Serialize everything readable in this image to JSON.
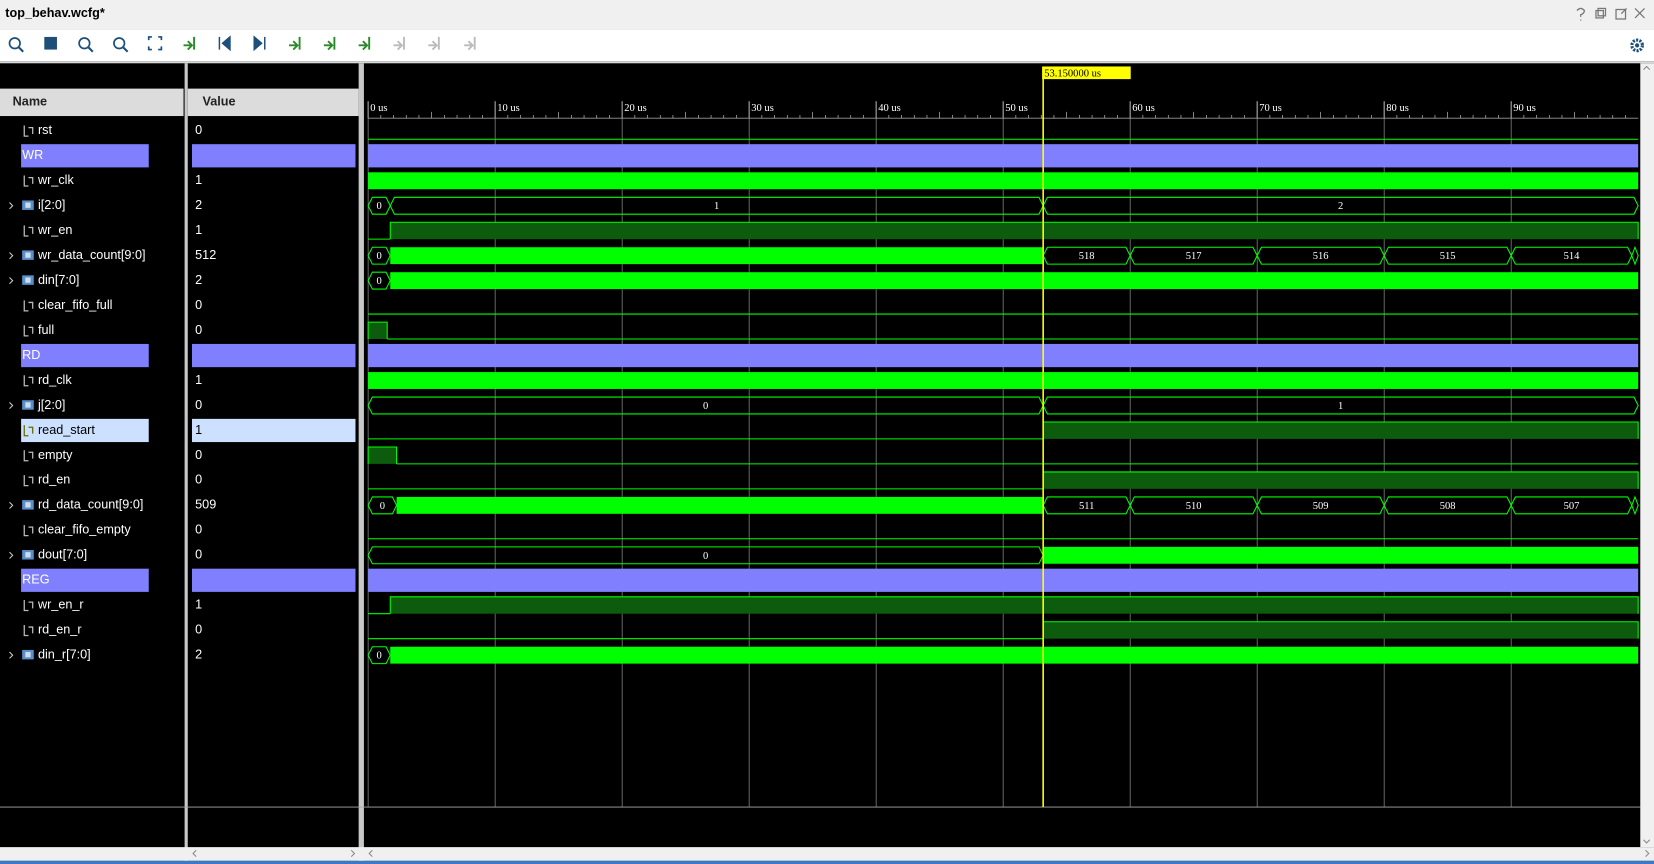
{
  "title": "top_behav.wcfg*",
  "headers": {
    "name": "Name",
    "value": "Value"
  },
  "ruler": {
    "range": [
      0,
      100
    ],
    "ticks": [
      {
        "value": 0,
        "label": "0 us"
      },
      {
        "value": 10,
        "label": "10 us"
      },
      {
        "value": 20,
        "label": "20 us"
      },
      {
        "value": 30,
        "label": "30 us"
      },
      {
        "value": 40,
        "label": "40 us"
      },
      {
        "value": 50,
        "label": "50 us"
      },
      {
        "value": 60,
        "label": "60 us"
      },
      {
        "value": 70,
        "label": "70 us"
      },
      {
        "value": 80,
        "label": "80 us"
      },
      {
        "value": 90,
        "label": "90 us"
      }
    ]
  },
  "cursor": {
    "value": 53.15,
    "label": "53.150000 us"
  },
  "signals": [
    {
      "name": "rst",
      "kind": "bit",
      "value": "0",
      "wave": [
        {
          "from": 0,
          "to": 100,
          "level": "low"
        }
      ]
    },
    {
      "name": "WR",
      "kind": "group"
    },
    {
      "name": "wr_clk",
      "kind": "bit",
      "value": "1",
      "wave": [
        {
          "from": 0,
          "to": 100,
          "level": "dense"
        }
      ]
    },
    {
      "name": "i[2:0]",
      "kind": "bus",
      "value": "2",
      "wave": [
        {
          "from": 0,
          "to": 1.74,
          "level": "bus",
          "label": "0"
        },
        {
          "from": 1.74,
          "to": 53.15,
          "level": "bus",
          "label": "1"
        },
        {
          "from": 53.15,
          "to": 100,
          "level": "bus",
          "label": "2"
        }
      ]
    },
    {
      "name": "wr_en",
      "kind": "bit",
      "value": "1",
      "wave": [
        {
          "from": 0,
          "to": 1.74,
          "level": "low"
        },
        {
          "from": 1.74,
          "to": 100,
          "level": "high"
        }
      ]
    },
    {
      "name": "wr_data_count[9:0]",
      "kind": "bus",
      "value": "512",
      "wave": [
        {
          "from": 0,
          "to": 1.74,
          "level": "bus",
          "label": "0"
        },
        {
          "from": 1.74,
          "to": 53.15,
          "level": "dense"
        },
        {
          "from": 53.15,
          "to": 60,
          "level": "bus",
          "label": "518"
        },
        {
          "from": 60,
          "to": 70,
          "level": "bus",
          "label": "517"
        },
        {
          "from": 70,
          "to": 80,
          "level": "bus",
          "label": "516"
        },
        {
          "from": 80,
          "to": 90,
          "level": "bus",
          "label": "515"
        },
        {
          "from": 90,
          "to": 99.5,
          "level": "bus",
          "label": "514"
        },
        {
          "from": 99.5,
          "to": 100,
          "level": "bus"
        }
      ]
    },
    {
      "name": "din[7:0]",
      "kind": "bus",
      "value": "2",
      "wave": [
        {
          "from": 0,
          "to": 1.74,
          "level": "bus",
          "label": "0"
        },
        {
          "from": 1.74,
          "to": 100,
          "level": "dense"
        }
      ]
    },
    {
      "name": "clear_fifo_full",
      "kind": "bit",
      "value": "0",
      "wave": [
        {
          "from": 0,
          "to": 100,
          "level": "low"
        }
      ]
    },
    {
      "name": "full",
      "kind": "bit",
      "value": "0",
      "wave": [
        {
          "from": 0,
          "to": 1.5,
          "level": "high"
        },
        {
          "from": 1.5,
          "to": 100,
          "level": "low"
        }
      ]
    },
    {
      "name": "RD",
      "kind": "group"
    },
    {
      "name": "rd_clk",
      "kind": "bit",
      "value": "1",
      "wave": [
        {
          "from": 0,
          "to": 100,
          "level": "dense"
        }
      ]
    },
    {
      "name": "j[2:0]",
      "kind": "bus",
      "value": "0",
      "wave": [
        {
          "from": 0,
          "to": 53.15,
          "level": "bus",
          "label": "0"
        },
        {
          "from": 53.15,
          "to": 100,
          "level": "bus",
          "label": "1"
        }
      ]
    },
    {
      "name": "read_start",
      "kind": "bit",
      "value": "1",
      "selected": true,
      "wave": [
        {
          "from": 0,
          "to": 53.15,
          "level": "low"
        },
        {
          "from": 53.15,
          "to": 100,
          "level": "high"
        }
      ]
    },
    {
      "name": "empty",
      "kind": "bit",
      "value": "0",
      "wave": [
        {
          "from": 0,
          "to": 2.24,
          "level": "high"
        },
        {
          "from": 2.24,
          "to": 100,
          "level": "low"
        }
      ]
    },
    {
      "name": "rd_en",
      "kind": "bit",
      "value": "0",
      "wave": [
        {
          "from": 0,
          "to": 53.15,
          "level": "low"
        },
        {
          "from": 53.15,
          "to": 100,
          "level": "high"
        }
      ]
    },
    {
      "name": "rd_data_count[9:0]",
      "kind": "bus",
      "value": "509",
      "wave": [
        {
          "from": 0,
          "to": 2.24,
          "level": "bus",
          "label": "0"
        },
        {
          "from": 2.24,
          "to": 53.15,
          "level": "dense"
        },
        {
          "from": 53.15,
          "to": 60,
          "level": "bus",
          "label": "511"
        },
        {
          "from": 60,
          "to": 70,
          "level": "bus",
          "label": "510"
        },
        {
          "from": 70,
          "to": 80,
          "level": "bus",
          "label": "509"
        },
        {
          "from": 80,
          "to": 90,
          "level": "bus",
          "label": "508"
        },
        {
          "from": 90,
          "to": 99.5,
          "level": "bus",
          "label": "507"
        },
        {
          "from": 99.5,
          "to": 100,
          "level": "bus"
        }
      ]
    },
    {
      "name": "clear_fifo_empty",
      "kind": "bit",
      "value": "0",
      "wave": [
        {
          "from": 0,
          "to": 100,
          "level": "low"
        }
      ]
    },
    {
      "name": "dout[7:0]",
      "kind": "bus",
      "value": "0",
      "wave": [
        {
          "from": 0,
          "to": 53.15,
          "level": "bus",
          "label": "0"
        },
        {
          "from": 53.15,
          "to": 100,
          "level": "dense"
        }
      ]
    },
    {
      "name": "REG",
      "kind": "group"
    },
    {
      "name": "wr_en_r",
      "kind": "bit",
      "value": "1",
      "wave": [
        {
          "from": 0,
          "to": 1.74,
          "level": "low"
        },
        {
          "from": 1.74,
          "to": 100,
          "level": "high"
        }
      ]
    },
    {
      "name": "rd_en_r",
      "kind": "bit",
      "value": "0",
      "wave": [
        {
          "from": 0,
          "to": 53.15,
          "level": "low"
        },
        {
          "from": 53.15,
          "to": 100,
          "level": "high"
        }
      ]
    },
    {
      "name": "din_r[7:0]",
      "kind": "bus",
      "value": "2",
      "wave": [
        {
          "from": 0,
          "to": 1.74,
          "level": "bus",
          "label": "0"
        },
        {
          "from": 1.74,
          "to": 100,
          "level": "dense"
        }
      ]
    }
  ]
}
